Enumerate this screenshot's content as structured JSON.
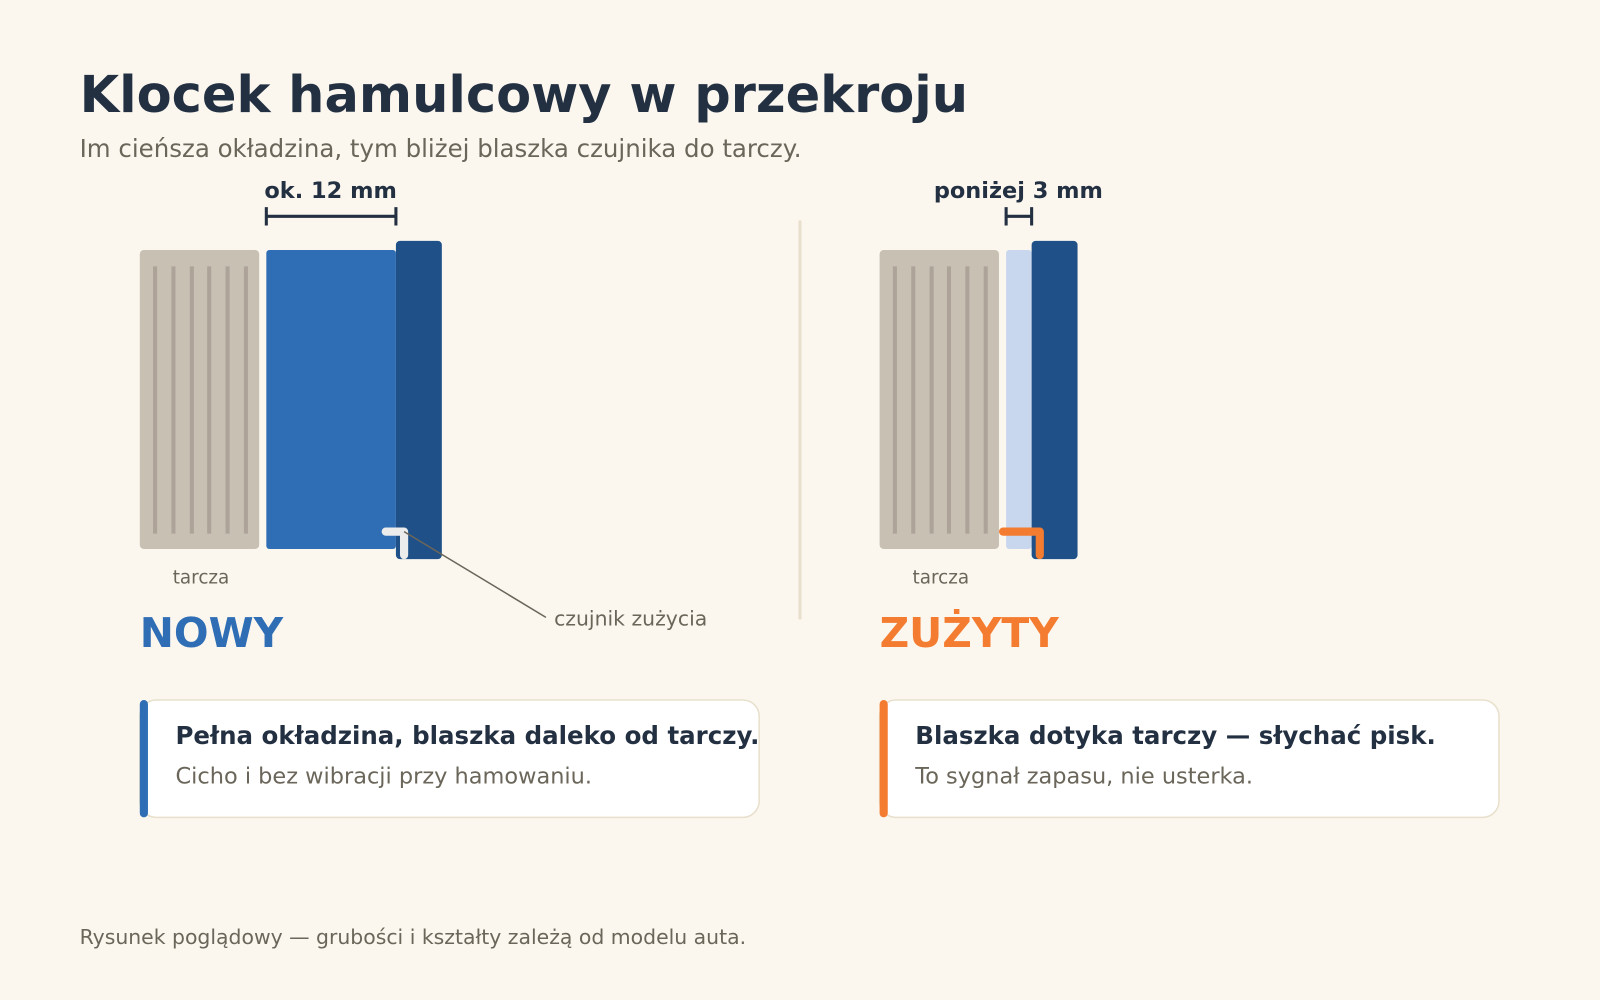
{
  "header": {
    "title": "Klocek hamulcowy w przekroju",
    "subtitle": "Im cieńsza okładzina, tym bliżej blaszka czujnika do tarczy."
  },
  "panels": [
    {
      "measure": "ok. 12 mm",
      "disc_label": "tarcza",
      "state": "NOWY",
      "callout": "czujnik zużycia",
      "note_title": "Pełna okładzina, blaszka daleko od tarczy.",
      "note_text": "Cicho i bez wibracji przy hamowaniu."
    },
    {
      "measure": "poniżej 3 mm",
      "disc_label": "tarcza",
      "state": "ZUŻYTY",
      "note_title": "Blaszka dotyka tarczy — słychać pisk.",
      "note_text": "To sygnał zapasu, nie usterka."
    }
  ],
  "footer": "Rysunek poglądowy — grubości i kształty zależą od modelu auta."
}
